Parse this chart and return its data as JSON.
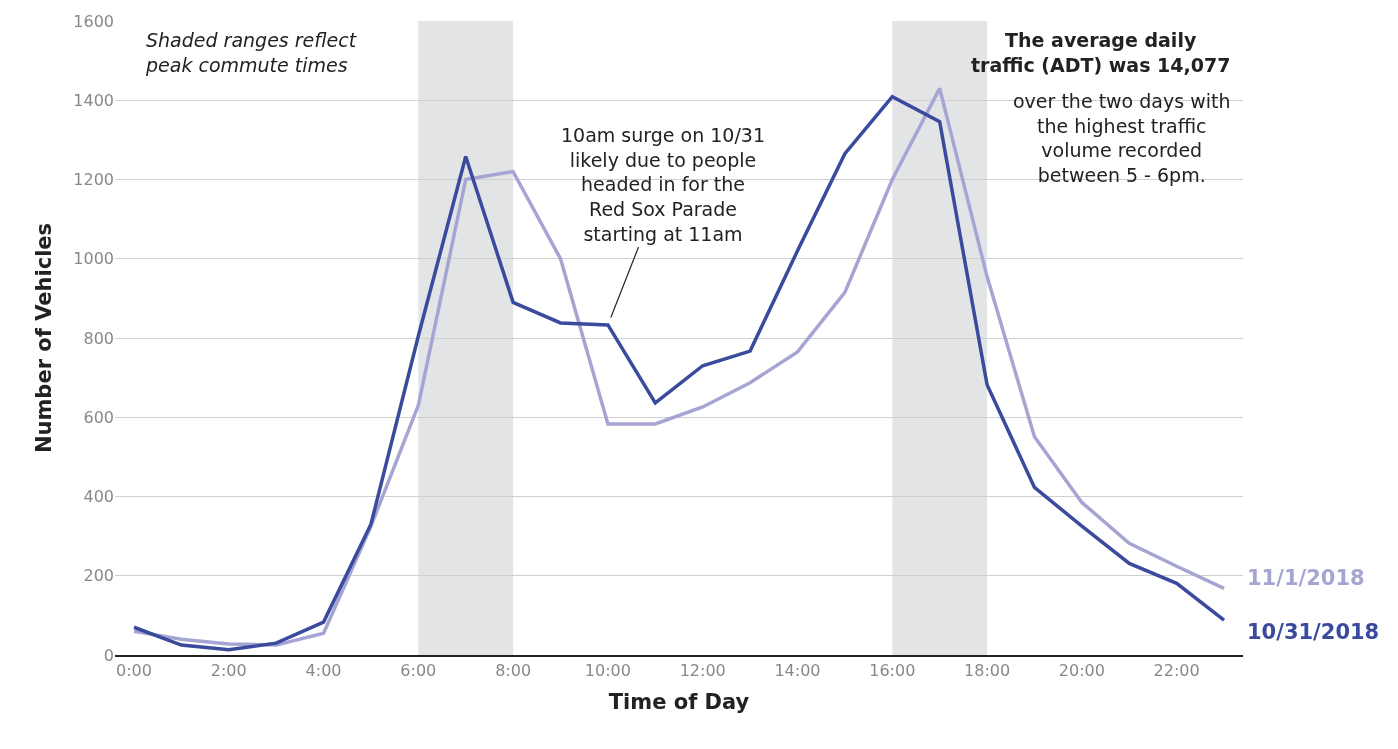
{
  "chart_data": {
    "type": "line",
    "xlabel": "Time of Day",
    "ylabel": "Number of Vehicles",
    "x": [
      0,
      1,
      2,
      3,
      4,
      5,
      6,
      7,
      8,
      9,
      10,
      11,
      12,
      13,
      14,
      15,
      16,
      17,
      18,
      19,
      20,
      21,
      22,
      23
    ],
    "series": [
      {
        "name": "11/1/2018",
        "color": "#a5a5d3",
        "values": [
          60,
          40,
          28,
          25,
          55,
          325,
          630,
          1200,
          1220,
          1000,
          583,
          583,
          626,
          687,
          765,
          915,
          1200,
          1430,
          955,
          551,
          385,
          282,
          224,
          168
        ]
      },
      {
        "name": "10/31/2018",
        "color": "#3a4a9d",
        "values": [
          70,
          25,
          13,
          30,
          83,
          330,
          805,
          1258,
          890,
          838,
          833,
          636,
          730,
          767,
          1020,
          1265,
          1409,
          1346,
          682,
          423,
          325,
          231,
          181,
          88
        ]
      }
    ],
    "xlim": [
      -0.4,
      23.4
    ],
    "xticks": [
      {
        "value": 0,
        "label": "0:00"
      },
      {
        "value": 2,
        "label": "2:00"
      },
      {
        "value": 4,
        "label": "4:00"
      },
      {
        "value": 6,
        "label": "6:00"
      },
      {
        "value": 8,
        "label": "8:00"
      },
      {
        "value": 10,
        "label": "10:00"
      },
      {
        "value": 12,
        "label": "12:00"
      },
      {
        "value": 14,
        "label": "14:00"
      },
      {
        "value": 16,
        "label": "16:00"
      },
      {
        "value": 18,
        "label": "18:00"
      },
      {
        "value": 20,
        "label": "20:00"
      },
      {
        "value": 22,
        "label": "22:00"
      }
    ],
    "ylim": [
      0,
      1600
    ],
    "yticks": [
      0,
      200,
      400,
      600,
      800,
      1000,
      1200,
      1400,
      1600
    ],
    "grid": "y",
    "marker": "none",
    "line_style": "solid",
    "bands": [
      {
        "axis": "x",
        "from": 6,
        "to": 8,
        "color": "#e3e4e6"
      },
      {
        "axis": "x",
        "from": 16,
        "to": 18,
        "color": "#e3e4e6"
      }
    ],
    "annotations": [
      "Shaded ranges reflect\npeak commute times",
      {
        "text": "10am surge on 10/31\nlikely due to people\nheaded in for the\nRed Sox Parade\nstarting at 11am",
        "x": 10,
        "y": 833
      },
      "The average daily\ntraffic (ADT) was 14,077",
      "over the two days with\nthe highest traffic\nvolume recorded\nbetween 5 - 6pm."
    ]
  }
}
